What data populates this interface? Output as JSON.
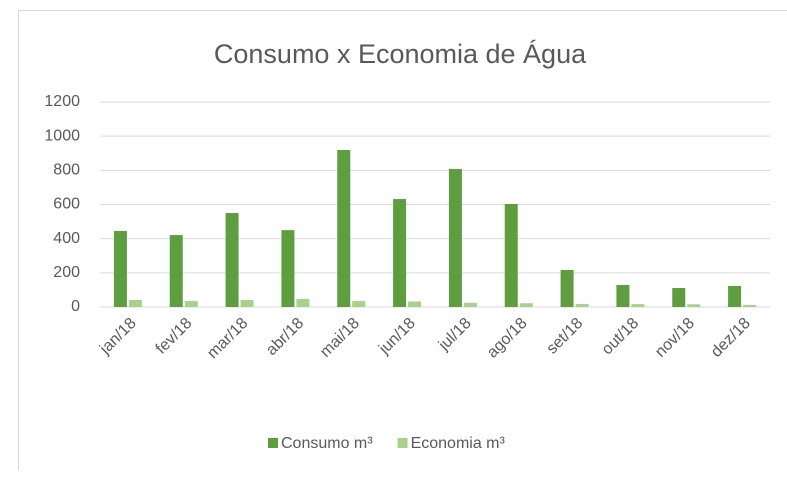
{
  "chart_data": {
    "type": "bar",
    "title": "Consumo x Economia de Água",
    "categories": [
      "jan/18",
      "fev/18",
      "mar/18",
      "abr/18",
      "mai/18",
      "jun/18",
      "jul/18",
      "ago/18",
      "set/18",
      "out/18",
      "nov/18",
      "dez/18"
    ],
    "series": [
      {
        "name": "Consumo m³",
        "color": "#5e9e3e",
        "values": [
          445,
          421,
          550,
          450,
          919,
          632,
          808,
          603,
          217,
          129,
          111,
          123
        ]
      },
      {
        "name": "Economia m³",
        "color": "#a9d18e",
        "values": [
          41,
          35,
          41,
          47,
          35,
          32,
          25,
          22,
          18,
          17,
          16,
          12
        ]
      }
    ],
    "ylim": [
      0,
      1200
    ],
    "yticks": [
      0,
      200,
      400,
      600,
      800,
      1000,
      1200
    ],
    "grid": true,
    "legend": "bottom"
  }
}
